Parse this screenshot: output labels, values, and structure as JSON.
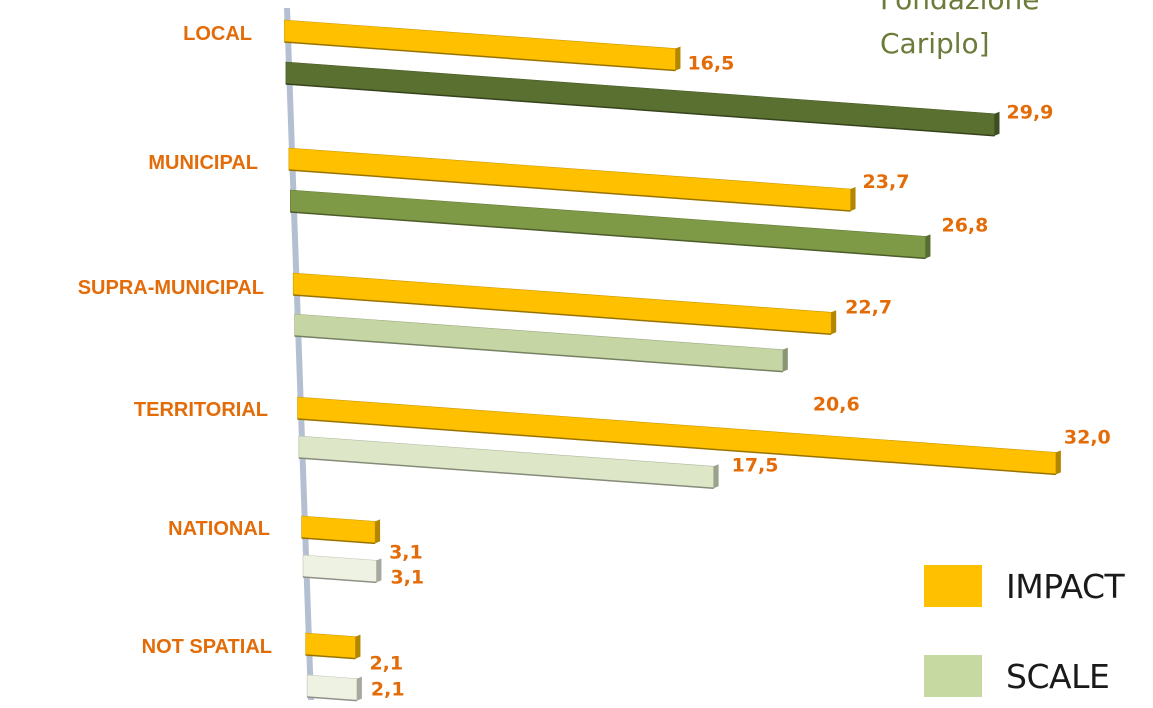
{
  "note": {
    "line1": "Fondazione",
    "line2": "Cariplo]"
  },
  "chart_data": {
    "type": "bar",
    "orientation": "horizontal",
    "categories": [
      "LOCAL",
      "MUNICIPAL",
      "SUPRA-MUNICIPAL",
      "TERRITORIAL",
      "NATIONAL",
      "NOT SPATIAL"
    ],
    "series": [
      {
        "name": "IMPACT",
        "values": [
          16.5,
          23.7,
          22.7,
          32.0,
          3.1,
          2.1
        ],
        "labels": [
          "16,5",
          "23,7",
          "22,7",
          "32,0",
          "3,1",
          "2,1"
        ]
      },
      {
        "name": "SCALE",
        "values": [
          29.9,
          26.8,
          20.6,
          17.5,
          3.1,
          2.1
        ],
        "labels": [
          "29,9",
          "26,8",
          "20,6",
          "17,5",
          "3,1",
          "2,1"
        ]
      }
    ],
    "colors": {
      "impact": "#ffc000",
      "scale_per_category": [
        "#5a7030",
        "#7f9a46",
        "#c5d6a4",
        "#dde7c8",
        "#eef2e3",
        "#eef2e3"
      ],
      "label": "#e36c09",
      "axis": "#b4c0d2"
    },
    "xlabel": "",
    "ylabel": "",
    "xlim": [
      0,
      32
    ],
    "grid": false,
    "legend_position": "bottom-right"
  },
  "legend": [
    {
      "label": "IMPACT",
      "color": "#ffc000"
    },
    {
      "label": "SCALE",
      "color": "#c5d9a0"
    }
  ]
}
